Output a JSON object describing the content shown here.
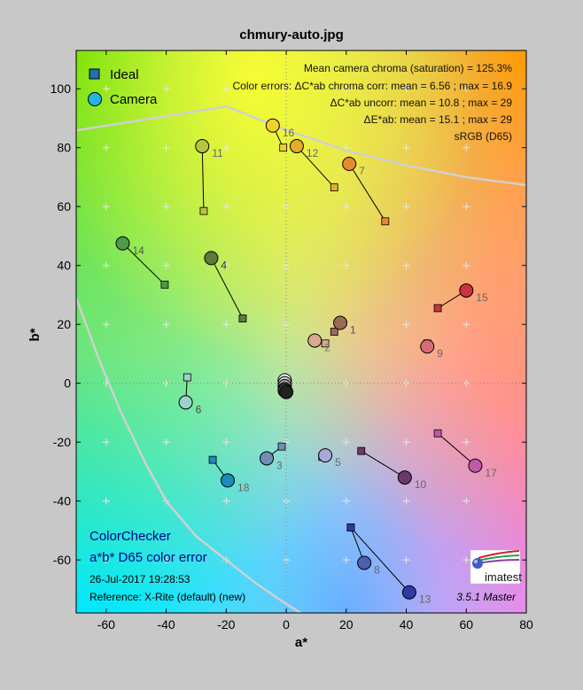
{
  "title": "chmury-auto.jpg",
  "chart_data": {
    "type": "scatter",
    "xlabel": "a*",
    "ylabel": "b*",
    "xlim": [
      -70,
      80
    ],
    "ylim": [
      -78,
      113
    ],
    "xticks": [
      -60,
      -40,
      -20,
      0,
      20,
      40,
      60,
      80
    ],
    "yticks": [
      100,
      80,
      60,
      40,
      20,
      0,
      -20,
      -40,
      -60
    ],
    "grid": true,
    "legend_position": "top-left",
    "legend": [
      {
        "name": "Ideal",
        "marker": "square"
      },
      {
        "name": "Camera",
        "marker": "circle"
      }
    ],
    "info_lines": [
      "Mean camera chroma (saturation) = 125.3%",
      "Color errors: ΔC*ab chroma corr:  mean = 6.56 ;  max = 16.9",
      "ΔC*ab uncorr:  mean = 10.8 ;  max = 29",
      "ΔE*ab:  mean = 15.1 ;  max = 29",
      "sRGB (D65)"
    ],
    "gamut_boundary": [
      [
        -72,
        85.5
      ],
      [
        -20,
        94
      ],
      [
        0,
        86
      ],
      [
        20,
        79
      ],
      [
        40,
        74
      ],
      [
        60,
        70
      ],
      [
        82,
        67
      ]
    ],
    "gamut_boundary_lower": [
      [
        -70,
        29
      ],
      [
        -62,
        7
      ],
      [
        -55,
        -10
      ],
      [
        -47,
        -27
      ],
      [
        -40,
        -40
      ],
      [
        -30,
        -52
      ],
      [
        -20,
        -60
      ],
      [
        -10,
        -68
      ],
      [
        0,
        -75
      ],
      [
        8,
        -80
      ]
    ],
    "patches": [
      {
        "id": "1",
        "ideal": [
          16,
          17.5
        ],
        "camera": [
          18,
          20.5
        ],
        "color": "#9a6b55",
        "label_color": "#555555"
      },
      {
        "id": "2",
        "ideal": [
          13,
          13.5
        ],
        "camera": [
          9.5,
          14.5
        ],
        "color": "#d9a890",
        "label_color": "#777777"
      },
      {
        "id": "3",
        "ideal": [
          -1.5,
          -21.5
        ],
        "camera": [
          -6.5,
          -25.5
        ],
        "color": "#6f8fb5",
        "label_color": "#666666"
      },
      {
        "id": "4",
        "ideal": [
          -14.5,
          22
        ],
        "camera": [
          -25,
          42.5
        ],
        "color": "#5e7a3c",
        "label_color": "#333333"
      },
      {
        "id": "5",
        "ideal": [
          12,
          -25
        ],
        "camera": [
          13,
          -24.5
        ],
        "color": "#a8a9d6",
        "label_color": "#666666"
      },
      {
        "id": "6",
        "ideal": [
          -33,
          2
        ],
        "camera": [
          -33.5,
          -6.5
        ],
        "color": "#9cd2cc",
        "label_color": "#444444"
      },
      {
        "id": "7",
        "ideal": [
          33,
          55
        ],
        "camera": [
          21,
          74.5
        ],
        "color": "#e68a2e",
        "label_color": "#666666"
      },
      {
        "id": "8",
        "ideal": [
          21.5,
          -49
        ],
        "camera": [
          26,
          -61
        ],
        "color": "#4a60b0",
        "label_color": "#666666"
      },
      {
        "id": "9",
        "ideal": [
          47,
          13.5
        ],
        "camera": [
          47,
          12.5
        ],
        "color": "#d96a76",
        "label_color": "#666666"
      },
      {
        "id": "10",
        "ideal": [
          25,
          -23
        ],
        "camera": [
          39.5,
          -32
        ],
        "color": "#6b3a6b",
        "label_color": "#666666"
      },
      {
        "id": "11",
        "ideal": [
          -27.5,
          58.5
        ],
        "camera": [
          -28,
          80.5
        ],
        "color": "#b7c43e",
        "label_color": "#666666"
      },
      {
        "id": "12",
        "ideal": [
          16,
          66.5
        ],
        "camera": [
          3.5,
          80.5
        ],
        "color": "#e6ac28",
        "label_color": "#666666"
      },
      {
        "id": "13",
        "ideal": [
          21.5,
          -49
        ],
        "camera": [
          41,
          -71
        ],
        "color": "#2e3aa6",
        "label_color": "#666666"
      },
      {
        "id": "14",
        "ideal": [
          -40.5,
          33.5
        ],
        "camera": [
          -54.5,
          47.5
        ],
        "color": "#4d9a48",
        "label_color": "#555555"
      },
      {
        "id": "15",
        "ideal": [
          50.5,
          25.5
        ],
        "camera": [
          60,
          31.5
        ],
        "color": "#cc3340",
        "label_color": "#666666"
      },
      {
        "id": "16",
        "ideal": [
          -1,
          80
        ],
        "camera": [
          -4.5,
          87.5
        ],
        "color": "#f0d22a",
        "label_color": "#666666"
      },
      {
        "id": "17",
        "ideal": [
          50.5,
          -17
        ],
        "camera": [
          63,
          -28
        ],
        "color": "#c05aa8",
        "label_color": "#666666"
      },
      {
        "id": "18",
        "ideal": [
          -24.5,
          -26
        ],
        "camera": [
          -19.5,
          -33
        ],
        "color": "#1a8cbc",
        "label_color": "#666666"
      },
      {
        "id": "19",
        "ideal": [
          0,
          0
        ],
        "camera": [
          -0.5,
          1
        ],
        "color": "#f5f5f5",
        "label_color": "#666666"
      },
      {
        "id": "20",
        "ideal": [
          0,
          0
        ],
        "camera": [
          -0.5,
          0
        ],
        "color": "#cccccc",
        "label_color": "#666666"
      },
      {
        "id": "21",
        "ideal": [
          0,
          0
        ],
        "camera": [
          -0.5,
          -1
        ],
        "color": "#a0a0a0",
        "label_color": "#666666"
      },
      {
        "id": "22",
        "ideal": [
          0,
          0
        ],
        "camera": [
          -0.5,
          -2
        ],
        "color": "#777777",
        "label_color": "#666666"
      },
      {
        "id": "23",
        "ideal": [
          0,
          0
        ],
        "camera": [
          -0.5,
          -2.5
        ],
        "color": "#4a4a4a",
        "label_color": "#666666"
      },
      {
        "id": "24",
        "ideal": [
          0,
          0
        ],
        "camera": [
          0,
          -3
        ],
        "color": "#222222",
        "label_color": "#666666"
      }
    ]
  },
  "bottom_left": {
    "title_line1": "ColorChecker",
    "title_line2": "a*b* D65 color error",
    "date": "26-Jul-2017 19:28:53",
    "reference": "Reference: X-Rite (default) (new)"
  },
  "logo_text": "imatest",
  "version_text": "3.5.1  Master",
  "colors": {
    "page_bg": "#c8c8c8",
    "gamut_line": "#d0d0d0",
    "grid_plus": "#e8e8e8",
    "ideal_marker_legend": "#1f6fb4",
    "camera_marker_legend": "#1fb6e6",
    "cc_title": "#00008b"
  }
}
